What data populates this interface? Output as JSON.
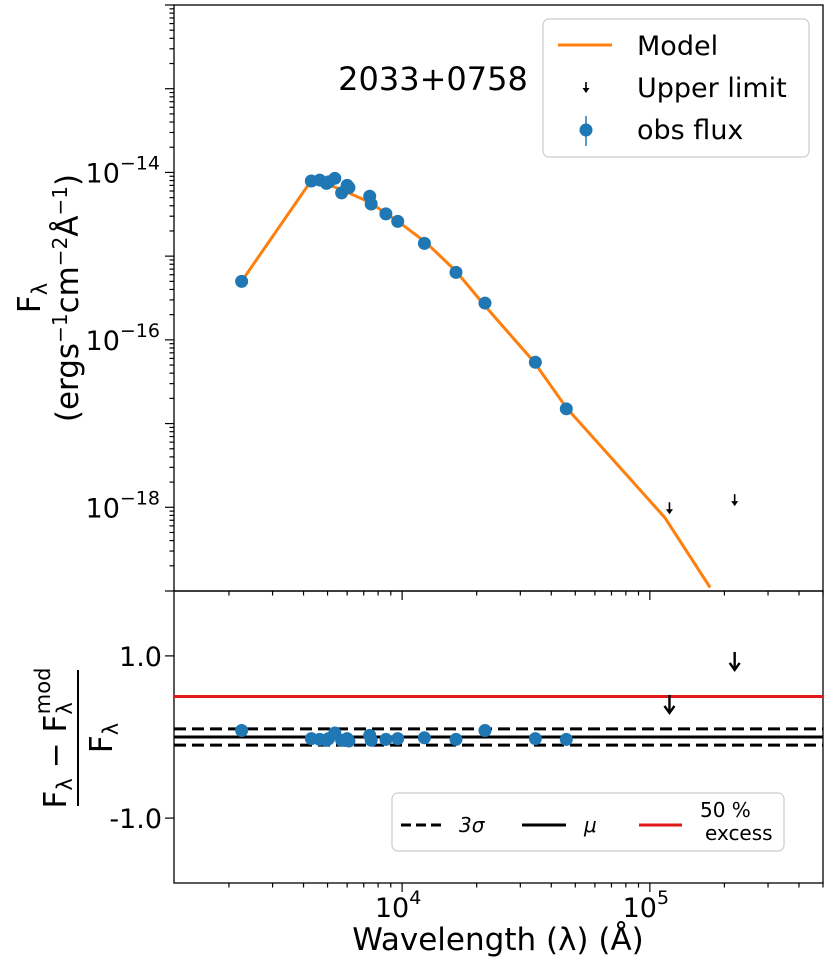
{
  "chart_data": {
    "type": "scatter",
    "title": "2033+0758",
    "top_panel": {
      "ylabel_line1": "F",
      "ylabel_sub": "λ",
      "ylabel_line2": "(ergs",
      "ylabel_parts": [
        "(ergs",
        "−1",
        "cm",
        "−2",
        "Å",
        "−1",
        ")"
      ],
      "yscale": "log",
      "ylim": [
        1e-19,
        1e-12
      ],
      "yticks": [
        {
          "value": 1e-14,
          "label_base": "10",
          "label_exp": "−14"
        },
        {
          "value": 1e-16,
          "label_base": "10",
          "label_exp": "−16"
        },
        {
          "value": 1e-18,
          "label_base": "10",
          "label_exp": "−18"
        }
      ],
      "model": {
        "name": "Model",
        "color": "#ff7f0e",
        "x": [
          2250,
          4300,
          4700,
          5000,
          5400,
          6000,
          7400,
          8800,
          9800,
          12500,
          16500,
          21700,
          34000,
          46000,
          115000,
          175000
        ],
        "y": [
          5e-16,
          8e-15,
          7.6e-15,
          7.2e-15,
          6.6e-15,
          5.8e-15,
          4.4e-15,
          3.1e-15,
          2.5e-15,
          1.45e-15,
          6.6e-16,
          2.5e-16,
          5.5e-17,
          1.55e-17,
          7.5e-19,
          1.1e-19
        ]
      },
      "obs_flux": {
        "name": "obs flux",
        "color": "#1f77b4",
        "x": [
          2250,
          4300,
          4650,
          4950,
          5050,
          5350,
          5700,
          6000,
          6100,
          7400,
          7500,
          8600,
          9600,
          12300,
          16500,
          21600,
          34500,
          46000
        ],
        "y": [
          5e-16,
          7.9e-15,
          8.1e-15,
          7.4e-15,
          7.7e-15,
          8.5e-15,
          5.7e-15,
          7e-15,
          6.6e-15,
          5.2e-15,
          4.2e-15,
          3.2e-15,
          2.6e-15,
          1.42e-15,
          6.4e-16,
          2.75e-16,
          5.4e-17,
          1.5e-17
        ]
      },
      "upper_limits": {
        "name": "Upper limit",
        "x": [
          120000,
          220000
        ],
        "y": [
          1e-18,
          1.25e-18
        ]
      }
    },
    "bottom_panel": {
      "ylabel": "(F_λ − F_λ^mod) / F_λ",
      "ylim": [
        -1.8,
        1.8
      ],
      "yticks": [
        {
          "value": 1.0,
          "label": "1.0"
        },
        {
          "value": -1.0,
          "label": "-1.0"
        }
      ],
      "sigma_upper": 0.1,
      "sigma_lower": -0.1,
      "mu": 0.0,
      "excess_50": 0.5,
      "residuals": {
        "x": [
          2250,
          4300,
          4650,
          4950,
          5050,
          5350,
          5700,
          6000,
          6100,
          7400,
          7500,
          8600,
          9600,
          12300,
          16500,
          21600,
          34500,
          46000
        ],
        "y": [
          0.08,
          -0.02,
          -0.03,
          -0.04,
          -0.02,
          0.05,
          -0.04,
          -0.02,
          -0.05,
          0.02,
          -0.04,
          -0.03,
          -0.02,
          -0.01,
          -0.03,
          0.08,
          -0.02,
          -0.03
        ]
      },
      "upper_limit_residuals": {
        "x": [
          120000,
          220000
        ],
        "y": [
          0.42,
          0.95
        ]
      },
      "legend": {
        "sigma_label": "3σ",
        "mu_label": "μ",
        "excess_label_line1": "50 %",
        "excess_label_line2": "excess"
      },
      "colors": {
        "sigma": "#000000",
        "mu": "#000000",
        "excess": "#e31a1c"
      }
    },
    "xaxis": {
      "xlabel": "Wavelength (λ) (Å)",
      "xscale": "log",
      "xlim": [
        1200,
        500000
      ],
      "xticks": [
        {
          "value": 10000,
          "label_base": "10",
          "label_exp": "4"
        },
        {
          "value": 100000,
          "label_base": "10",
          "label_exp": "5"
        }
      ]
    },
    "legend": {
      "model_label": "Model",
      "upper_label": "Upper limit",
      "obs_label": "obs flux"
    }
  }
}
